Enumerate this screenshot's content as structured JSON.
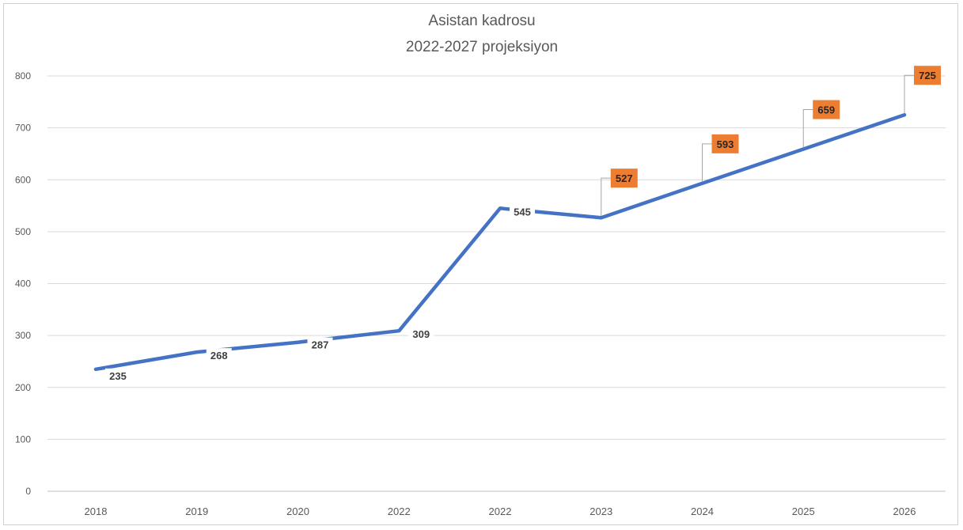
{
  "chart_data": {
    "type": "line",
    "title": "Asistan kadrosu",
    "subtitle": "2022-2027 projeksiyon",
    "xlabel": "",
    "ylabel": "",
    "categories": [
      "2018",
      "2019",
      "2020",
      "2022",
      "2022",
      "2023",
      "2024",
      "2025",
      "2026"
    ],
    "series": [
      {
        "values": [
          235,
          268,
          287,
          309,
          545,
          527,
          593,
          659,
          725
        ],
        "color": "#4472c4"
      }
    ],
    "data_labels": [
      "235",
      "268",
      "287",
      "309",
      "545",
      "527",
      "593",
      "659",
      "725"
    ],
    "highlighted_label_indices": [
      5,
      6,
      7,
      8
    ],
    "highlight_color": "#ed7d31",
    "ylim": [
      0,
      800
    ],
    "yticks": [
      0,
      100,
      200,
      300,
      400,
      500,
      600,
      700,
      800
    ],
    "grid": true,
    "legend": "none"
  }
}
